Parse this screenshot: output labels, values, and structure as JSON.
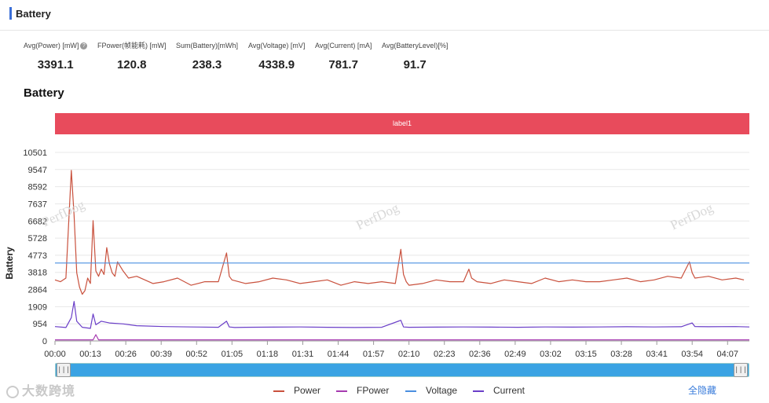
{
  "header": {
    "title": "Battery"
  },
  "stats": [
    {
      "label": "Avg(Power) [mW]",
      "value": "3391.1",
      "help": true
    },
    {
      "label": "FPower(帧能耗) [mW]",
      "value": "120.8"
    },
    {
      "label": "Sum(Battery)[mWh]",
      "value": "238.3"
    },
    {
      "label": "Avg(Voltage) [mV]",
      "value": "4338.9"
    },
    {
      "label": "Avg(Current) [mA]",
      "value": "781.7"
    },
    {
      "label": "Avg(BatteryLevel)[%]",
      "value": "91.7"
    }
  ],
  "section_title": "Battery",
  "label_bar": "label1",
  "watermark": "PerfDog",
  "brand": "大数跨境",
  "hide_all_label": "全隐藏",
  "legend": [
    {
      "name": "Power",
      "color": "#c9513d"
    },
    {
      "name": "FPower",
      "color": "#a63ab0"
    },
    {
      "name": "Voltage",
      "color": "#4a8fe0"
    },
    {
      "name": "Current",
      "color": "#6a3ec8"
    }
  ],
  "icons": {
    "help": "question-circle-icon",
    "slider_left": "drag-handle-icon",
    "slider_right": "drag-handle-icon"
  },
  "chart_data": {
    "type": "line",
    "ylabel": "Battery",
    "yticks": [
      0,
      954,
      1909,
      2864,
      3818,
      4773,
      5728,
      6682,
      7637,
      8592,
      9547,
      10501
    ],
    "ylim": [
      0,
      10501
    ],
    "xlim": [
      0,
      255
    ],
    "xtick_labels": [
      "00:00",
      "00:13",
      "00:26",
      "00:39",
      "00:52",
      "01:05",
      "01:18",
      "01:31",
      "01:44",
      "01:57",
      "02:10",
      "02:23",
      "02:36",
      "02:49",
      "03:02",
      "03:15",
      "03:28",
      "03:41",
      "03:54",
      "04:07"
    ],
    "xtick_seconds": [
      0,
      13,
      26,
      39,
      52,
      65,
      78,
      91,
      104,
      117,
      130,
      143,
      156,
      169,
      182,
      195,
      208,
      221,
      234,
      247
    ],
    "grid": "horizontal",
    "series": [
      {
        "name": "Power",
        "color": "#c9513d",
        "x": [
          0,
          2,
          4,
          6,
          7,
          8,
          9,
          10,
          11,
          12,
          13,
          14,
          15,
          16,
          17,
          18,
          19,
          20,
          21,
          22,
          23,
          25,
          27,
          30,
          33,
          36,
          40,
          45,
          50,
          55,
          60,
          63,
          64,
          65,
          70,
          75,
          80,
          85,
          90,
          95,
          100,
          105,
          110,
          115,
          120,
          125,
          127,
          128,
          129,
          130,
          135,
          140,
          145,
          150,
          152,
          153,
          155,
          160,
          165,
          170,
          175,
          180,
          185,
          190,
          195,
          200,
          205,
          210,
          215,
          220,
          225,
          230,
          233,
          234,
          235,
          240,
          245,
          250,
          253
        ],
        "y": [
          3400,
          3300,
          3500,
          9500,
          7000,
          3800,
          3000,
          2600,
          2800,
          3500,
          3200,
          6700,
          3900,
          3600,
          4000,
          3700,
          5200,
          4300,
          3800,
          3600,
          4400,
          3900,
          3500,
          3600,
          3400,
          3200,
          3300,
          3500,
          3100,
          3300,
          3300,
          4900,
          3600,
          3400,
          3200,
          3300,
          3500,
          3400,
          3200,
          3300,
          3400,
          3100,
          3300,
          3200,
          3300,
          3200,
          5100,
          3700,
          3300,
          3100,
          3200,
          3400,
          3300,
          3300,
          4000,
          3500,
          3300,
          3200,
          3400,
          3300,
          3200,
          3500,
          3300,
          3400,
          3300,
          3300,
          3400,
          3500,
          3300,
          3400,
          3600,
          3500,
          4400,
          3800,
          3500,
          3600,
          3400,
          3500,
          3400
        ]
      },
      {
        "name": "FPower",
        "color": "#a63ab0",
        "x": [
          0,
          14,
          15,
          16,
          255
        ],
        "y": [
          60,
          60,
          350,
          60,
          60
        ]
      },
      {
        "name": "Voltage",
        "color": "#4a8fe0",
        "x": [
          0,
          255
        ],
        "y": [
          4339,
          4339
        ]
      },
      {
        "name": "Current",
        "color": "#6a3ec8",
        "x": [
          0,
          4,
          6,
          7,
          8,
          10,
          13,
          14,
          15,
          17,
          20,
          25,
          30,
          40,
          50,
          60,
          63,
          64,
          66,
          70,
          80,
          90,
          100,
          110,
          120,
          127,
          128,
          130,
          140,
          150,
          160,
          170,
          180,
          190,
          200,
          210,
          220,
          230,
          234,
          235,
          240,
          250,
          255
        ],
        "y": [
          800,
          750,
          1300,
          2200,
          1100,
          760,
          700,
          1500,
          900,
          1100,
          1000,
          950,
          850,
          800,
          780,
          760,
          1100,
          780,
          750,
          760,
          770,
          780,
          760,
          750,
          760,
          1150,
          780,
          760,
          770,
          780,
          770,
          760,
          780,
          770,
          780,
          790,
          780,
          790,
          1000,
          800,
          790,
          800,
          780
        ]
      }
    ]
  }
}
